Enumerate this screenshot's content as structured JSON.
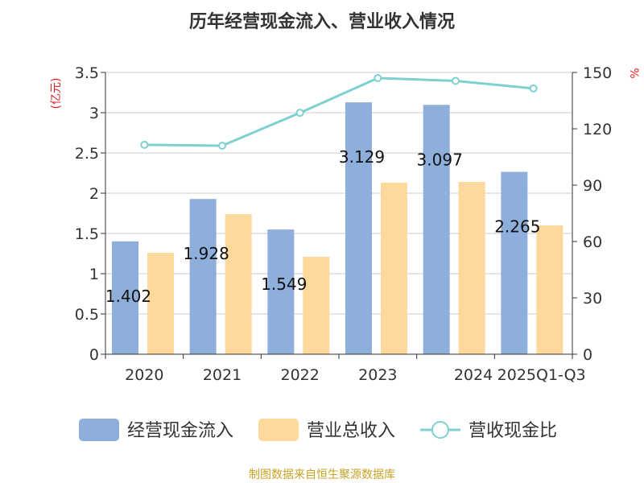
{
  "chart_data": {
    "type": "bar",
    "title": "历年经营现金流入、营业收入情况",
    "y_left_unit": "(亿元)",
    "y_right_unit": "%",
    "ylim_left": [
      0,
      3.5
    ],
    "ylim_right": [
      0,
      150
    ],
    "y_left_ticks": [
      "0",
      "0.5",
      "1",
      "1.5",
      "2",
      "2.5",
      "3",
      "3.5"
    ],
    "y_right_ticks": [
      "0",
      "30",
      "60",
      "90",
      "120",
      "150"
    ],
    "categories": [
      "2020",
      "2021",
      "2022",
      "2023",
      "2024",
      "2025Q1-Q3"
    ],
    "grid": true,
    "legend_position": "bottom",
    "series": [
      {
        "name": "经营现金流入",
        "kind": "bar",
        "axis": "left",
        "color": "#8eaedb",
        "values": [
          1.402,
          1.928,
          1.549,
          3.129,
          3.097,
          2.265
        ],
        "labels": [
          "1.402",
          "1.928",
          "1.549",
          "3.129",
          "3.097",
          "2.265"
        ]
      },
      {
        "name": "营业总收入",
        "kind": "bar",
        "axis": "left",
        "color": "#fed99b",
        "values": [
          1.26,
          1.74,
          1.21,
          2.13,
          2.14,
          1.6
        ]
      },
      {
        "name": "营收现金比",
        "kind": "line",
        "axis": "right",
        "color": "#7fd0d0",
        "values": [
          111.5,
          111,
          128.5,
          147,
          145.5,
          141.5
        ]
      }
    ],
    "source": "制图数据来自恒生聚源数据库"
  }
}
